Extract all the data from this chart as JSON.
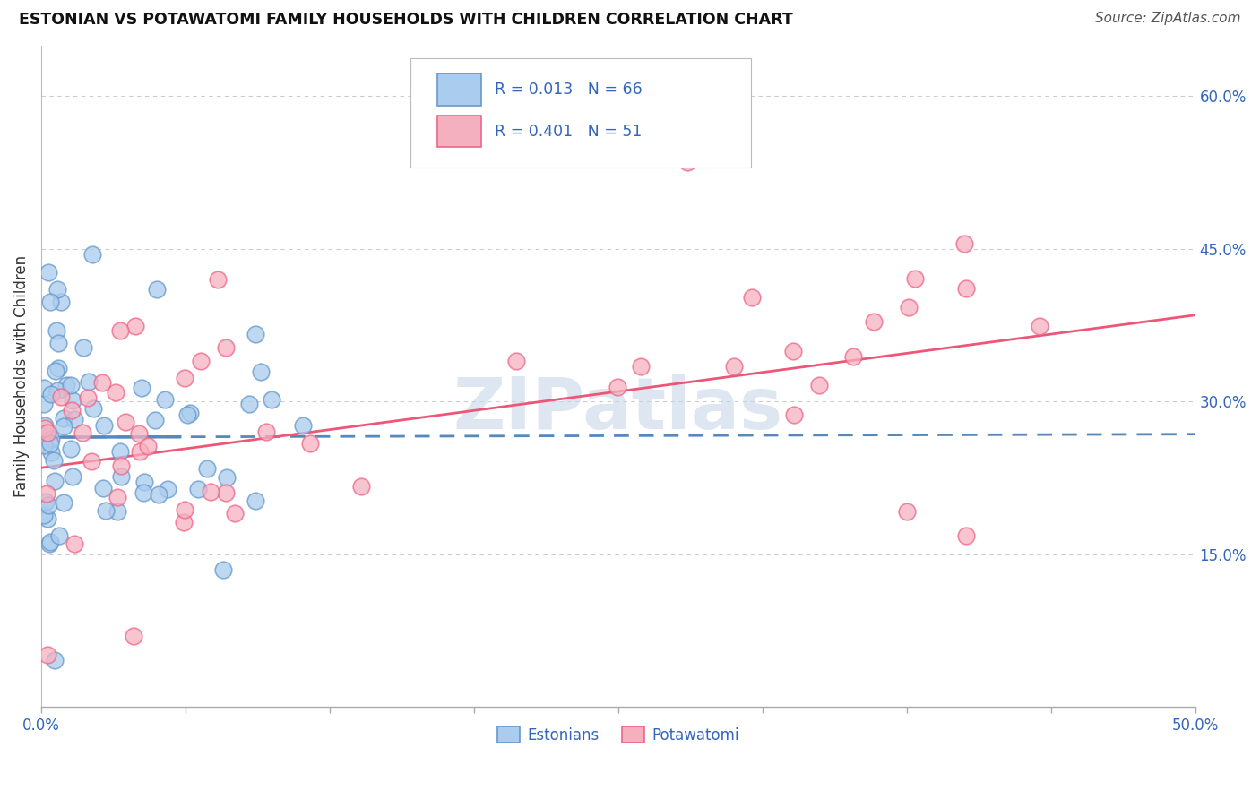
{
  "title": "ESTONIAN VS POTAWATOMI FAMILY HOUSEHOLDS WITH CHILDREN CORRELATION CHART",
  "source": "Source: ZipAtlas.com",
  "ylabel": "Family Households with Children",
  "xlim": [
    0.0,
    0.5
  ],
  "ylim": [
    0.0,
    0.65
  ],
  "xtick_positions": [
    0.0,
    0.0625,
    0.125,
    0.1875,
    0.25,
    0.3125,
    0.375,
    0.4375,
    0.5
  ],
  "xtick_labels_show": {
    "0.0": "0.0%",
    "0.50": "50.0%"
  },
  "yticks": [
    0.0,
    0.15,
    0.3,
    0.45,
    0.6
  ],
  "right_ytick_labels": [
    "",
    "15.0%",
    "30.0%",
    "45.0%",
    "60.0%"
  ],
  "grid_color": "#cccccc",
  "background_color": "#ffffff",
  "estonian_color": "#aaccee",
  "potawatomi_color": "#f5b0c0",
  "estonian_edge_color": "#6699cc",
  "potawatomi_edge_color": "#ee6688",
  "estonian_line_color": "#5588bb",
  "potawatomi_line_color": "#ee5577",
  "R_estonian": 0.013,
  "N_estonian": 66,
  "R_potawatomi": 0.401,
  "N_potawatomi": 51,
  "watermark": "ZIPatlas",
  "legend_label_color": "#3366bb",
  "legend_R_color": "#222222",
  "est_line_y0": 0.265,
  "est_line_y1": 0.268,
  "pot_line_y0": 0.235,
  "pot_line_y1": 0.385
}
